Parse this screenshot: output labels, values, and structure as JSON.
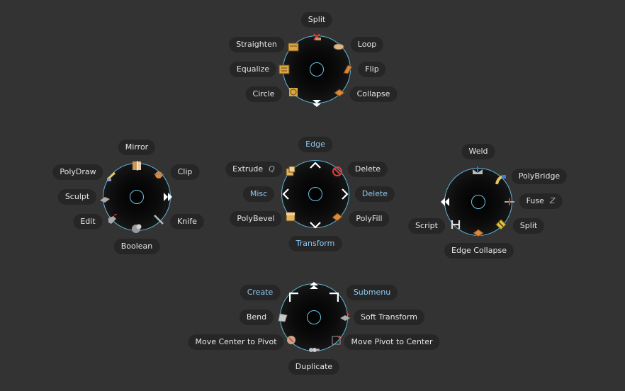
{
  "menus": {
    "edge_top": {
      "items": {
        "split": "Split",
        "loop": "Loop",
        "flip": "Flip",
        "collapse": "Collapse",
        "circle": "Circle",
        "equalize": "Equalize",
        "straighten": "Straighten"
      }
    },
    "left": {
      "items": {
        "mirror": "Mirror",
        "clip": "Clip",
        "knife": "Knife",
        "boolean": "Boolean",
        "edit": "Edit",
        "sculpt": "Sculpt",
        "polydraw": "PolyDraw"
      }
    },
    "center": {
      "items": {
        "edge": "Edge",
        "delete_top": "Delete",
        "delete_right": "Delete",
        "polyfill": "PolyFill",
        "transform": "Transform",
        "polybevel": "PolyBevel",
        "misc": "Misc",
        "extrude": "Extrude",
        "extrude_hotkey": "Q"
      }
    },
    "right": {
      "items": {
        "weld": "Weld",
        "polybridge": "PolyBridge",
        "fuse": "Fuse",
        "fuse_hotkey": "Z",
        "split": "Split",
        "edge_collapse": "Edge Collapse",
        "script": "Script"
      }
    },
    "bottom": {
      "items": {
        "submenu": "Submenu",
        "soft_transform": "Soft Transform",
        "move_pivot_to_center": "Move Pivot to Center",
        "duplicate": "Duplicate",
        "move_center_to_pivot": "Move Center to Pivot",
        "bend": "Bend",
        "create": "Create"
      }
    }
  },
  "colors": {
    "background": "#333333",
    "pill": "#262626",
    "text": "#e6e6e6",
    "submenu_text": "#8fcaf2",
    "ring_outline": "#5fb6d6"
  }
}
